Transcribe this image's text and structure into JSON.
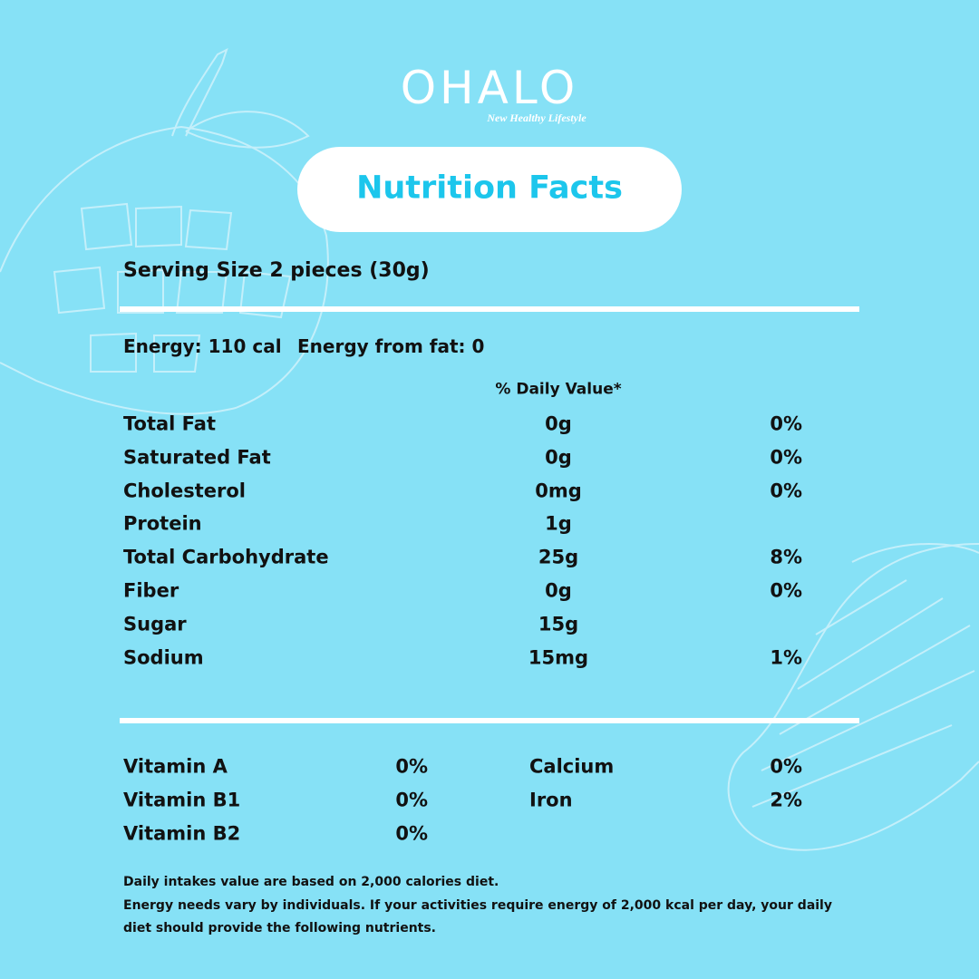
{
  "logo": {
    "brand": "OHALO",
    "tagline": "New Healthy Lifestyle"
  },
  "title": "Nutrition Facts",
  "serving": "Serving Size 2 pieces (30g)",
  "energy": {
    "calories": "Energy: 110 cal",
    "from_fat": "Energy from fat: 0"
  },
  "daily_value_header": "% Daily Value*",
  "nutrients": [
    {
      "name": "Total Fat",
      "amount": "0g",
      "dv": "0%"
    },
    {
      "name": "Saturated Fat",
      "amount": "0g",
      "dv": "0%"
    },
    {
      "name": "Cholesterol",
      "amount": "0mg",
      "dv": "0%"
    },
    {
      "name": "Protein",
      "amount": "1g"
    },
    {
      "name": "Total Carbohydrate",
      "amount": "25g",
      "dv": "8%"
    },
    {
      "name": "Fiber",
      "amount": "0g",
      "dv": "0%"
    },
    {
      "name": "Sugar",
      "amount": "15g"
    },
    {
      "name": "Sodium",
      "amount": "15mg",
      "dv": "1%"
    }
  ],
  "vitamins_left": [
    {
      "name": "Vitamin A",
      "dv": "0%"
    },
    {
      "name": "Vitamin B1",
      "dv": "0%"
    },
    {
      "name": "Vitamin B2",
      "dv": "0%"
    }
  ],
  "vitamins_right": [
    {
      "name": "Calcium",
      "dv": "0%"
    },
    {
      "name": "Iron",
      "dv": "2%"
    }
  ],
  "footnote": [
    "Daily intakes value are based on 2,000 calories diet.",
    "Energy needs vary by individuals. If your activities require energy of 2,000 kcal per day, your daily",
    "diet should provide the following nutrients."
  ]
}
